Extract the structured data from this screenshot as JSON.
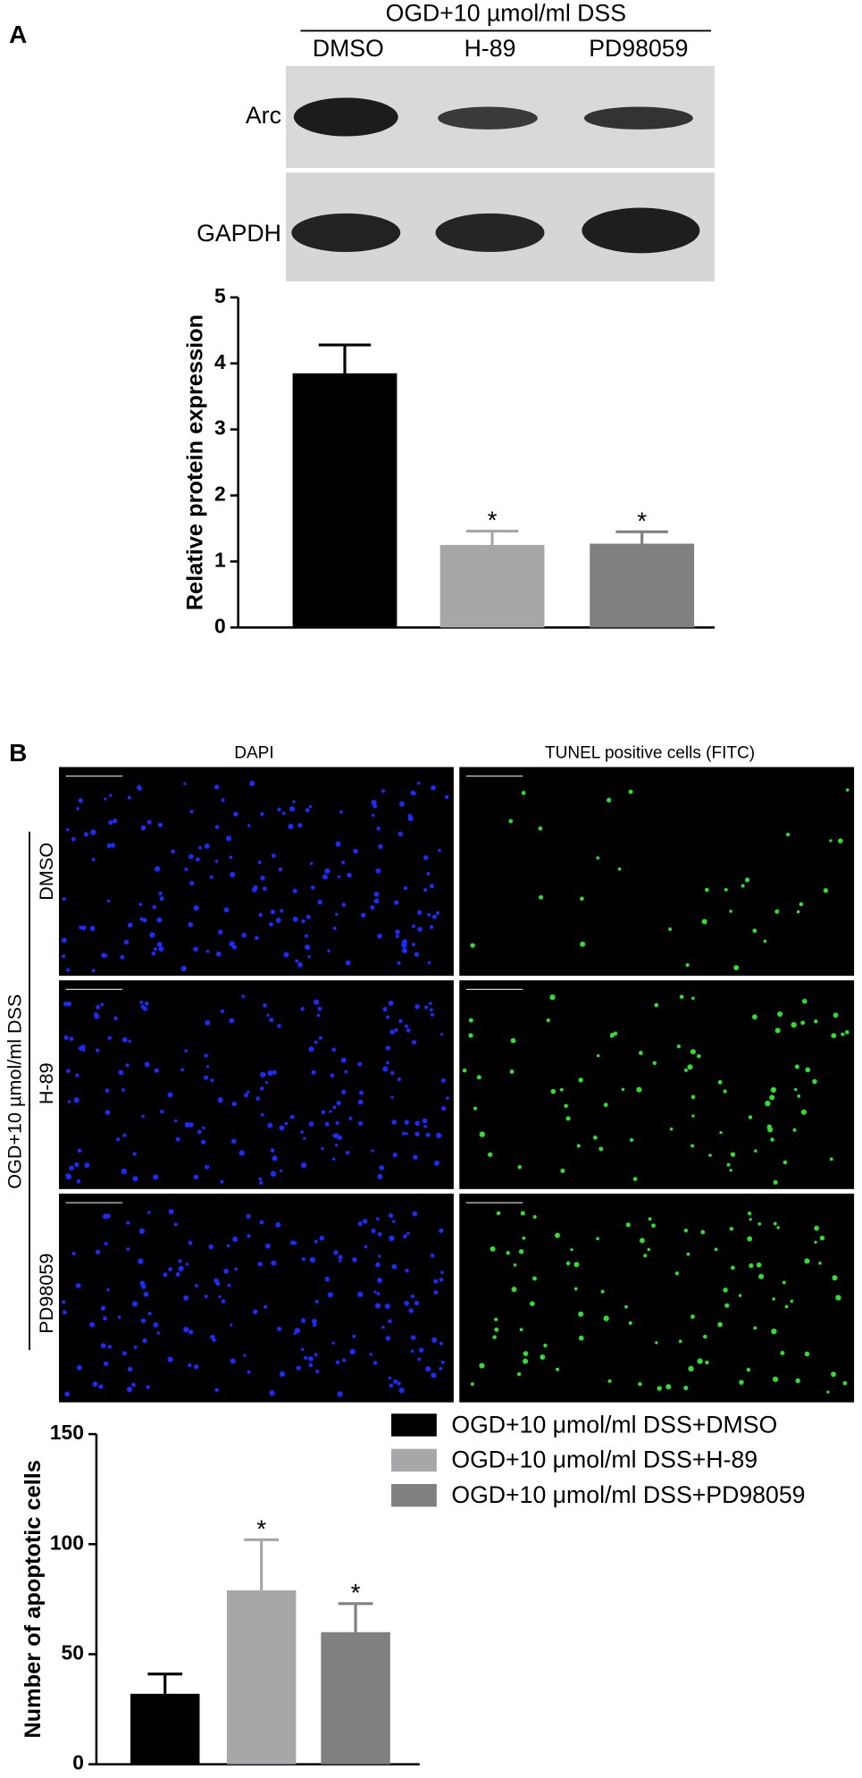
{
  "figure": {
    "panels": [
      "A",
      "B"
    ],
    "blot": {
      "header": "OGD+10 µmol/ml DSS",
      "rows": [
        "Arc",
        "GAPDH"
      ]
    },
    "microscopy": {
      "columns": [
        "DAPI",
        "TUNEL positive cells (FITC)"
      ],
      "group_label": "OGD+10 µmol/ml DSS",
      "rows": [
        "DMSO",
        "H-89",
        "PD98059"
      ]
    }
  },
  "chart_data": [
    {
      "type": "bar",
      "y_label": "Relative protein expression",
      "categories": [
        "DMSO",
        "H-89",
        "PD98059"
      ],
      "values": [
        3.85,
        1.25,
        1.27
      ],
      "errors": [
        0.43,
        0.21,
        0.18
      ],
      "colors": [
        "#000000",
        "#a7a7a9",
        "#808080"
      ],
      "markers": [
        null,
        "*",
        "*"
      ],
      "ylim": [
        0,
        5
      ],
      "yticks": [
        0,
        1,
        2,
        3,
        4,
        5
      ]
    },
    {
      "type": "bar",
      "y_label": "Number of apoptotic cells",
      "series": [
        {
          "name": "OGD+10 μmol/ml DSS+DMSO",
          "color": "#000000",
          "values": [
            32
          ],
          "errors": [
            9
          ]
        },
        {
          "name": "OGD+10 μmol/ml DSS+H-89",
          "color": "#a7a7a9",
          "values": [
            79
          ],
          "errors": [
            23
          ]
        },
        {
          "name": "OGD+10 μmol/ml DSS+PD98059",
          "color": "#808080",
          "values": [
            60
          ],
          "errors": [
            13
          ]
        }
      ],
      "markers": [
        null,
        "*",
        "*"
      ],
      "ylim": [
        0,
        150
      ],
      "yticks": [
        0,
        50,
        100,
        150
      ]
    }
  ]
}
